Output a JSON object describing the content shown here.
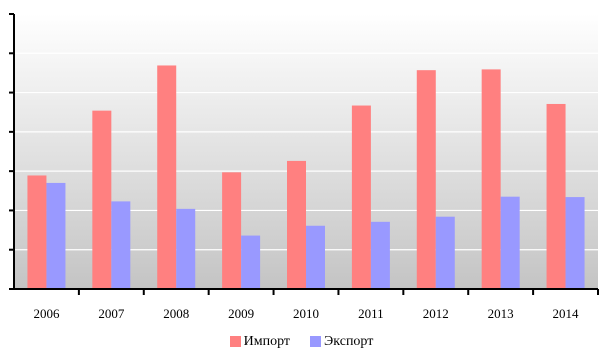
{
  "chart_data": {
    "type": "bar",
    "categories": [
      "2006",
      "2007",
      "2008",
      "2009",
      "2010",
      "2011",
      "2012",
      "2013",
      "2014"
    ],
    "series": [
      {
        "name": "Импорт",
        "color": "#ff8080",
        "values": [
          28.9,
          45.4,
          56.9,
          29.7,
          32.6,
          46.7,
          55.7,
          55.9,
          47.1
        ]
      },
      {
        "name": "Экспорт",
        "color": "#9999ff",
        "values": [
          27.0,
          22.3,
          20.4,
          13.6,
          16.1,
          17.1,
          18.4,
          23.5,
          23.4
        ]
      }
    ],
    "title": "",
    "xlabel": "",
    "ylabel": "",
    "ylim": [
      0,
      70
    ],
    "ytick_step": 10,
    "grid": true,
    "background_gradient": [
      "#ffffff",
      "#c4c4c4"
    ],
    "legend_position": "bottom"
  }
}
